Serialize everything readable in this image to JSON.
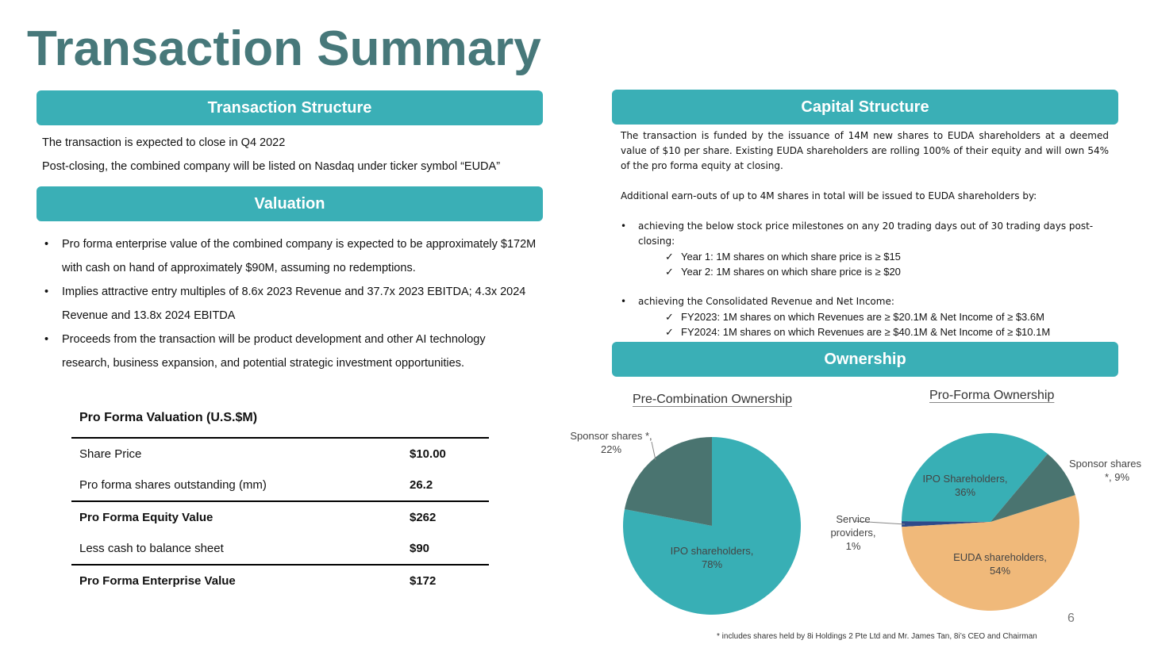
{
  "title": "Transaction Summary",
  "sections": {
    "structure": "Transaction Structure",
    "valuation": "Valuation",
    "capital": "Capital Structure",
    "ownership": "Ownership"
  },
  "structure_lines": [
    "The transaction is expected to close in Q4 2022",
    "Post-closing, the combined company will be listed on Nasdaq under ticker symbol “EUDA”"
  ],
  "valuation_bullets": [
    "Pro forma enterprise value of the combined company is expected to be approximately $172M with cash on hand of approximately $90M, assuming no redemptions.",
    "Implies attractive entry multiples of 8.6x 2023 Revenue and 37.7x 2023 EBITDA;  4.3x 2024 Revenue and 13.8x 2024 EBITDA",
    "Proceeds from the transaction will be product development and other AI technology research, business expansion, and potential strategic investment opportunities."
  ],
  "table": {
    "title": "Pro Forma Valuation (U.S.$M)",
    "rows": [
      [
        "Share Price",
        "$10.00"
      ],
      [
        "Pro forma shares outstanding (mm)",
        "26.2"
      ],
      [
        "Pro Forma Equity Value",
        "$262"
      ],
      [
        "Less cash to balance sheet",
        "$90"
      ],
      [
        "Pro Forma Enterprise Value",
        "$172"
      ]
    ]
  },
  "capital": {
    "p1": "The transaction is funded by the issuance of 14M new shares to EUDA shareholders at a deemed value of $10 per share. Existing EUDA shareholders are rolling 100% of their equity and will own 54% of the pro forma equity at closing.",
    "p2": "Additional earn-outs of up to 4M shares in total will be issued to EUDA shareholders by:",
    "b1": "achieving the below stock price milestones on any 20 trading days out of 30 trading days post-closing:",
    "c1": "Year 1: 1M shares on which share price is ≥ $15",
    "c2": "Year 2: 1M shares on which  share price is ≥ $20",
    "b2": "achieving the Consolidated Revenue and Net Income:",
    "c3": "FY2023: 1M shares on which Revenues are ≥ $20.1M & Net Income of ≥ $3.6M",
    "c4": "FY2024: 1M shares on which Revenues are ≥ $40.1M & Net Income of ≥ $10.1M"
  },
  "chart_data": [
    {
      "type": "pie",
      "title": "Pre-Combination Ownership",
      "slices": [
        {
          "label": "Sponsor shares *",
          "value": 22,
          "color": "#4a7470"
        },
        {
          "label": "IPO shareholders",
          "value": 78,
          "color": "#38afb5"
        }
      ]
    },
    {
      "type": "pie",
      "title": "Pro-Forma Ownership",
      "slices": [
        {
          "label": "Sponsor shares *",
          "value": 9,
          "color": "#4a7470"
        },
        {
          "label": "EUDA shareholders",
          "value": 54,
          "color": "#f0b97a"
        },
        {
          "label": "Service providers",
          "value": 1,
          "color": "#2e4a8a"
        },
        {
          "label": "IPO Shareholders",
          "value": 36,
          "color": "#38afb5"
        }
      ]
    }
  ],
  "labels": {
    "pre_sponsor": "Sponsor shares *,",
    "pre_sponsor_pct": "22%",
    "pre_ipo": "IPO shareholders,",
    "pre_ipo_pct": "78%",
    "pf_ipo": "IPO Shareholders,",
    "pf_ipo_pct": "36%",
    "pf_sponsor": "Sponsor shares",
    "pf_sponsor_pct": "*, 9%",
    "pf_service": "Service",
    "pf_service2": "providers,",
    "pf_service_pct": "1%",
    "pf_euda": "EUDA shareholders,",
    "pf_euda_pct": "54%"
  },
  "footnote": "* includes shares held by 8i Holdings 2 Pte Ltd and Mr. James Tan, 8i’s CEO and Chairman",
  "page_number": "6"
}
